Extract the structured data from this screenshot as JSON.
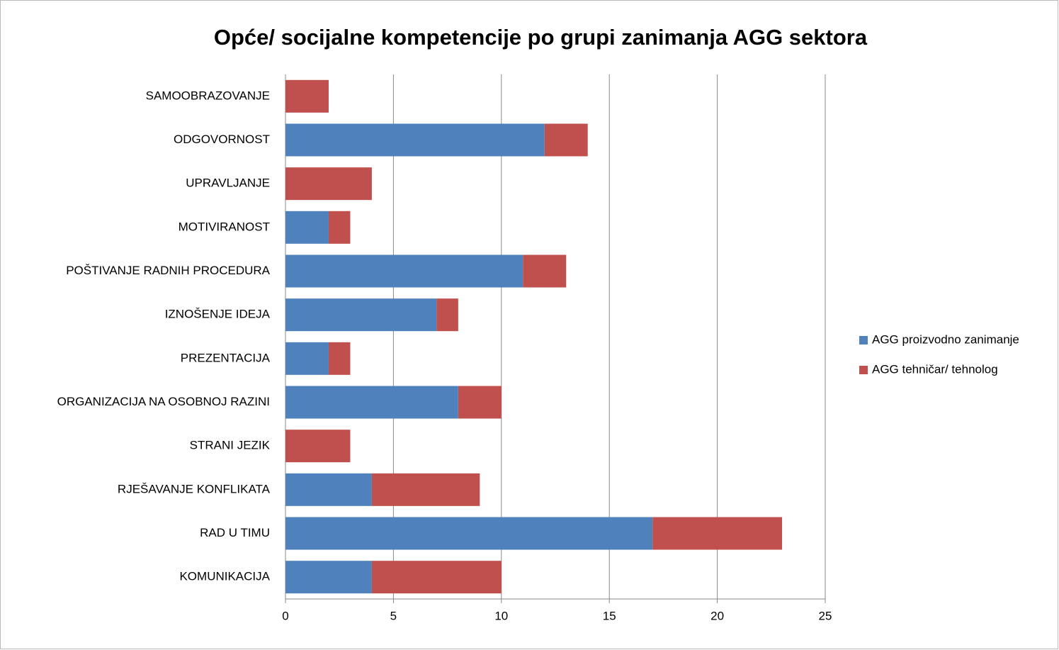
{
  "chart_data": {
    "type": "bar",
    "orientation": "horizontal",
    "stacked": true,
    "title": "Opće/ socijalne kompetencije po grupi zanimanja AGG sektora",
    "categories": [
      "SAMOOBRAZOVANJE",
      "ODGOVORNOST",
      "UPRAVLJANJE",
      "MOTIVIRANOST",
      "POŠTIVANJE RADNIH PROCEDURA",
      "IZNOŠENJE IDEJA",
      "PREZENTACIJA",
      "ORGANIZACIJA NA OSOBNOJ RAZINI",
      "STRANI JEZIK",
      "RJEŠAVANJE KONFLIKATA",
      "RAD U TIMU",
      "KOMUNIKACIJA"
    ],
    "series": [
      {
        "name": "AGG proizvodno zanimanje",
        "color": "#4f81bd",
        "values": [
          0,
          12,
          0,
          2,
          11,
          7,
          2,
          8,
          0,
          4,
          17,
          4
        ]
      },
      {
        "name": "AGG tehničar/ tehnolog",
        "color": "#c0504d",
        "values": [
          2,
          2,
          4,
          1,
          2,
          1,
          1,
          2,
          3,
          5,
          6,
          6
        ]
      }
    ],
    "xlim": [
      0,
      25
    ],
    "xticks": [
      0,
      5,
      10,
      15,
      20,
      25
    ],
    "grid": true,
    "legend": "right"
  }
}
